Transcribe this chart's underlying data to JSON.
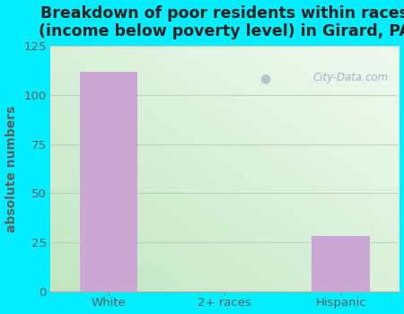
{
  "categories": [
    "White",
    "2+ races",
    "Hispanic"
  ],
  "values": [
    112,
    0,
    28
  ],
  "bar_color": "#c9a8d4",
  "title": "Breakdown of poor residents within races\n(income below poverty level) in Girard, PA",
  "ylabel": "absolute numbers",
  "ylim": [
    0,
    125
  ],
  "yticks": [
    0,
    25,
    50,
    75,
    100,
    125
  ],
  "title_fontsize": 12.5,
  "ylabel_fontsize": 10,
  "tick_fontsize": 9.5,
  "bg_outer": "#00eeff",
  "watermark": "City-Data.com",
  "title_color": "#222222",
  "axis_label_color": "#5a6060",
  "grid_color": "#c8dfc8",
  "bar_width": 0.5
}
